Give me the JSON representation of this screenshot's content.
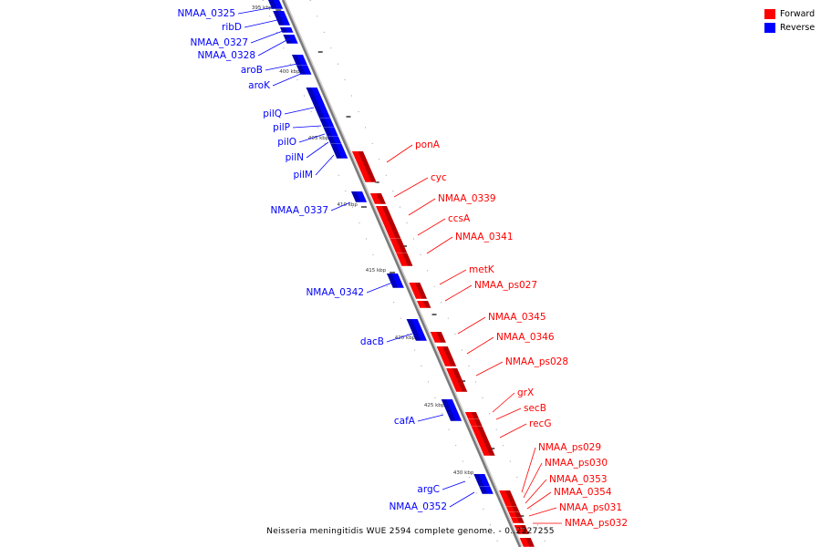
{
  "legend": [
    {
      "label": "Forward",
      "color": "#ff0000"
    },
    {
      "label": "Reverse",
      "color": "#0000ff"
    }
  ],
  "caption": "Neisseria meningitidis WUE 2594 complete genome. - 0..2227255",
  "scale_labels": [
    "395 kbp",
    "400 kbp",
    "405 kbp",
    "410 kbp",
    "415 kbp",
    "420 kbp",
    "425 kbp",
    "430 kbp"
  ],
  "genes": [
    {
      "name": "NMAA_0325",
      "strand": "reverse"
    },
    {
      "name": "ribD",
      "strand": "reverse"
    },
    {
      "name": "NMAA_0327",
      "strand": "reverse"
    },
    {
      "name": "NMAA_0328",
      "strand": "reverse"
    },
    {
      "name": "aroB",
      "strand": "reverse"
    },
    {
      "name": "aroK",
      "strand": "reverse"
    },
    {
      "name": "pilQ",
      "strand": "reverse"
    },
    {
      "name": "pilP",
      "strand": "reverse"
    },
    {
      "name": "pilO",
      "strand": "reverse"
    },
    {
      "name": "pilN",
      "strand": "reverse"
    },
    {
      "name": "pilM",
      "strand": "reverse"
    },
    {
      "name": "NMAA_0337",
      "strand": "reverse"
    },
    {
      "name": "NMAA_0342",
      "strand": "reverse"
    },
    {
      "name": "dacB",
      "strand": "reverse"
    },
    {
      "name": "cafA",
      "strand": "reverse"
    },
    {
      "name": "argC",
      "strand": "reverse"
    },
    {
      "name": "NMAA_0352",
      "strand": "reverse"
    },
    {
      "name": "ponA",
      "strand": "forward"
    },
    {
      "name": "cyc",
      "strand": "forward"
    },
    {
      "name": "NMAA_0339",
      "strand": "forward"
    },
    {
      "name": "ccsA",
      "strand": "forward"
    },
    {
      "name": "NMAA_0341",
      "strand": "forward"
    },
    {
      "name": "metK",
      "strand": "forward"
    },
    {
      "name": "NMAA_ps027",
      "strand": "forward"
    },
    {
      "name": "NMAA_0345",
      "strand": "forward"
    },
    {
      "name": "NMAA_0346",
      "strand": "forward"
    },
    {
      "name": "NMAA_ps028",
      "strand": "forward"
    },
    {
      "name": "grX",
      "strand": "forward"
    },
    {
      "name": "secB",
      "strand": "forward"
    },
    {
      "name": "recG",
      "strand": "forward"
    },
    {
      "name": "NMAA_ps029",
      "strand": "forward"
    },
    {
      "name": "NMAA_ps030",
      "strand": "forward"
    },
    {
      "name": "NMAA_0353",
      "strand": "forward"
    },
    {
      "name": "NMAA_0354",
      "strand": "forward"
    },
    {
      "name": "NMAA_ps031",
      "strand": "forward"
    },
    {
      "name": "NMAA_ps032",
      "strand": "forward"
    }
  ]
}
